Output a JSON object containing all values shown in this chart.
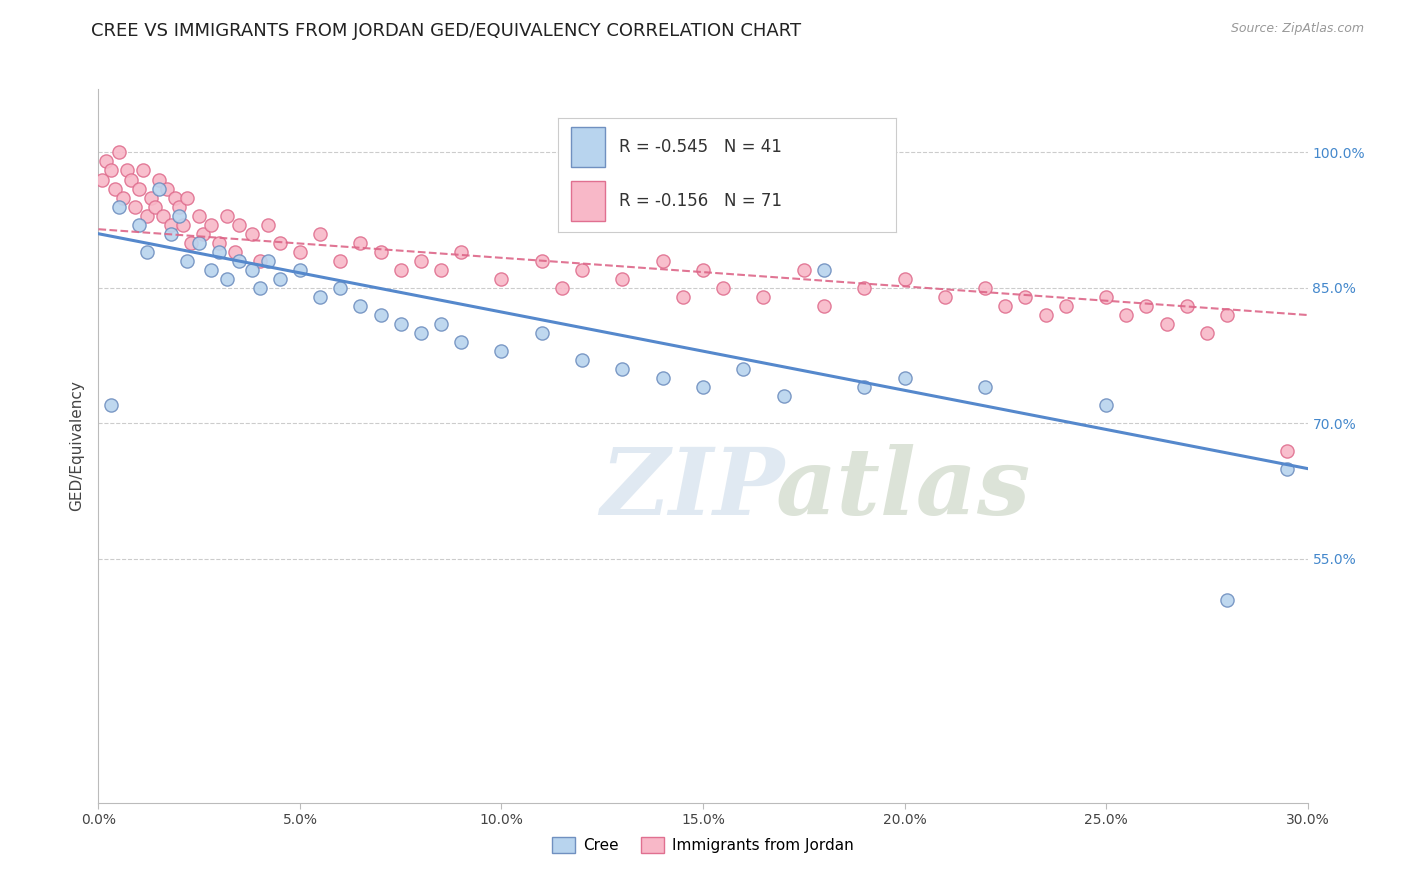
{
  "title": "CREE VS IMMIGRANTS FROM JORDAN GED/EQUIVALENCY CORRELATION CHART",
  "source": "Source: ZipAtlas.com",
  "xlim": [
    0.0,
    30.0
  ],
  "ylim": [
    28.0,
    107.0
  ],
  "xlabel_vals": [
    0.0,
    5.0,
    10.0,
    15.0,
    20.0,
    25.0,
    30.0
  ],
  "ylabel_display_vals": [
    100.0,
    85.0,
    70.0,
    55.0
  ],
  "cree_color": "#b8d4ee",
  "jordan_color": "#f8b8c8",
  "cree_edge_color": "#7090c0",
  "jordan_edge_color": "#e07090",
  "cree_line_color": "#5588cc",
  "jordan_line_color": "#dd6688",
  "R_cree": -0.545,
  "N_cree": 41,
  "R_jordan": -0.156,
  "N_jordan": 71,
  "cree_label": "Cree",
  "jordan_label": "Immigrants from Jordan",
  "ylabel": "GED/Equivalency",
  "cree_points_x": [
    0.3,
    0.5,
    1.0,
    1.2,
    1.5,
    1.8,
    2.0,
    2.2,
    2.5,
    2.8,
    3.0,
    3.2,
    3.5,
    3.8,
    4.0,
    4.2,
    4.5,
    5.0,
    5.5,
    6.0,
    6.5,
    7.0,
    7.5,
    8.0,
    8.5,
    9.0,
    10.0,
    11.0,
    12.0,
    13.0,
    14.0,
    15.0,
    16.0,
    17.0,
    18.0,
    19.0,
    20.0,
    22.0,
    25.0,
    28.0,
    29.5
  ],
  "cree_points_y": [
    72.0,
    94.0,
    92.0,
    89.0,
    96.0,
    91.0,
    93.0,
    88.0,
    90.0,
    87.0,
    89.0,
    86.0,
    88.0,
    87.0,
    85.0,
    88.0,
    86.0,
    87.0,
    84.0,
    85.0,
    83.0,
    82.0,
    81.0,
    80.0,
    81.0,
    79.0,
    78.0,
    80.0,
    77.0,
    76.0,
    75.0,
    74.0,
    76.0,
    73.0,
    87.0,
    74.0,
    75.0,
    74.0,
    72.0,
    50.5,
    65.0
  ],
  "jordan_points_x": [
    0.1,
    0.2,
    0.3,
    0.4,
    0.5,
    0.6,
    0.7,
    0.8,
    0.9,
    1.0,
    1.1,
    1.2,
    1.3,
    1.4,
    1.5,
    1.6,
    1.7,
    1.8,
    1.9,
    2.0,
    2.1,
    2.2,
    2.3,
    2.5,
    2.6,
    2.8,
    3.0,
    3.2,
    3.4,
    3.5,
    3.8,
    4.0,
    4.2,
    4.5,
    5.0,
    5.5,
    6.0,
    6.5,
    7.0,
    7.5,
    8.0,
    8.5,
    9.0,
    10.0,
    11.0,
    11.5,
    12.0,
    13.0,
    14.0,
    14.5,
    15.0,
    15.5,
    16.5,
    17.5,
    18.0,
    19.0,
    20.0,
    21.0,
    22.0,
    22.5,
    23.0,
    23.5,
    24.0,
    25.0,
    25.5,
    26.0,
    26.5,
    27.0,
    27.5,
    28.0,
    29.5
  ],
  "jordan_points_y": [
    97.0,
    99.0,
    98.0,
    96.0,
    100.0,
    95.0,
    98.0,
    97.0,
    94.0,
    96.0,
    98.0,
    93.0,
    95.0,
    94.0,
    97.0,
    93.0,
    96.0,
    92.0,
    95.0,
    94.0,
    92.0,
    95.0,
    90.0,
    93.0,
    91.0,
    92.0,
    90.0,
    93.0,
    89.0,
    92.0,
    91.0,
    88.0,
    92.0,
    90.0,
    89.0,
    91.0,
    88.0,
    90.0,
    89.0,
    87.0,
    88.0,
    87.0,
    89.0,
    86.0,
    88.0,
    85.0,
    87.0,
    86.0,
    88.0,
    84.0,
    87.0,
    85.0,
    84.0,
    87.0,
    83.0,
    85.0,
    86.0,
    84.0,
    85.0,
    83.0,
    84.0,
    82.0,
    83.0,
    84.0,
    82.0,
    83.0,
    81.0,
    83.0,
    80.0,
    82.0,
    67.0
  ],
  "grid_color": "#cccccc",
  "background_color": "#ffffff",
  "title_fontsize": 13,
  "axis_label_fontsize": 11,
  "tick_fontsize": 10,
  "marker_size": 90
}
